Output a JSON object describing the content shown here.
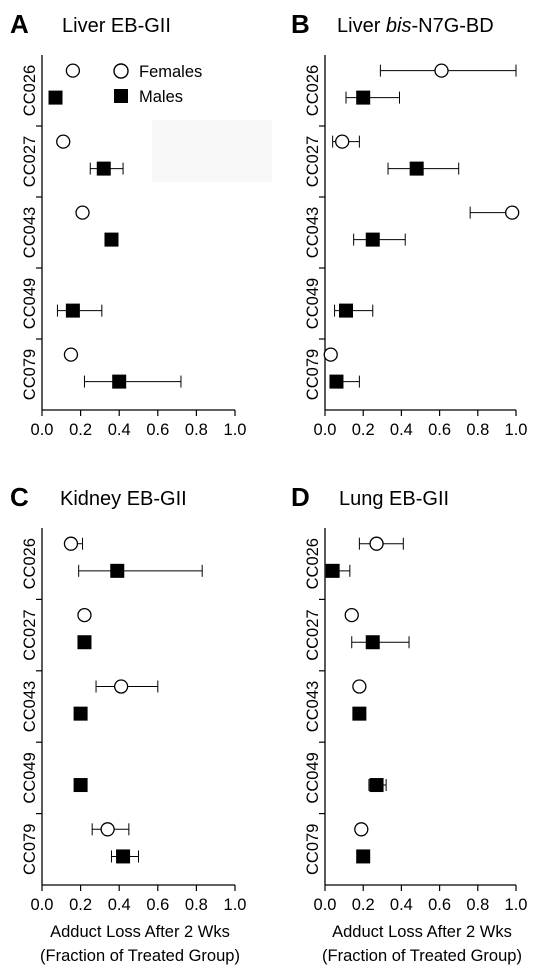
{
  "chart_data": [
    {
      "type": "scatter",
      "panel_label": "A",
      "title": "Liver EB-GII",
      "title_italic_part": "",
      "title_rest": "",
      "categories": [
        "CC026",
        "CC027",
        "CC043",
        "CC049",
        "CC079"
      ],
      "xlim": [
        0,
        1.0
      ],
      "xticks": [
        "0.0",
        "0.2",
        "0.4",
        "0.6",
        "0.8",
        "1.0"
      ],
      "xlabel_line1": "",
      "xlabel_line2": "",
      "show_legend": true,
      "series": [
        {
          "name": "Females",
          "marker": "open-circle",
          "values": [
            0.16,
            0.11,
            0.21,
            null,
            0.15
          ],
          "err_low": [
            null,
            null,
            null,
            null,
            null
          ],
          "err_high": [
            null,
            null,
            null,
            null,
            null
          ]
        },
        {
          "name": "Males",
          "marker": "filled-square",
          "values": [
            0.07,
            0.32,
            0.36,
            0.16,
            0.4
          ],
          "err_low": [
            null,
            0.25,
            null,
            0.08,
            0.22
          ],
          "err_high": [
            null,
            0.42,
            null,
            0.31,
            0.72
          ]
        }
      ]
    },
    {
      "type": "scatter",
      "panel_label": "B",
      "title": "",
      "title_prefix": "Liver ",
      "title_italic_part": "bis",
      "title_rest": "-N7G-BD",
      "categories": [
        "CC026",
        "CC027",
        "CC043",
        "CC049",
        "CC079"
      ],
      "xlim": [
        0,
        1.0
      ],
      "xticks": [
        "0.0",
        "0.2",
        "0.4",
        "0.6",
        "0.8",
        "1.0"
      ],
      "xlabel_line1": "",
      "xlabel_line2": "",
      "show_legend": false,
      "series": [
        {
          "name": "Females",
          "marker": "open-circle",
          "values": [
            0.61,
            0.09,
            0.98,
            null,
            0.03
          ],
          "err_low": [
            0.29,
            0.04,
            0.76,
            null,
            null
          ],
          "err_high": [
            1.0,
            0.18,
            1.0,
            null,
            null
          ]
        },
        {
          "name": "Males",
          "marker": "filled-square",
          "values": [
            0.2,
            0.48,
            0.25,
            0.11,
            0.06
          ],
          "err_low": [
            0.11,
            0.33,
            0.15,
            0.05,
            null
          ],
          "err_high": [
            0.39,
            0.7,
            0.42,
            0.25,
            0.18
          ]
        }
      ]
    },
    {
      "type": "scatter",
      "panel_label": "C",
      "title": "Kidney EB-GII",
      "title_italic_part": "",
      "title_rest": "",
      "categories": [
        "CC026",
        "CC027",
        "CC043",
        "CC049",
        "CC079"
      ],
      "xlim": [
        0,
        1.0
      ],
      "xticks": [
        "0.0",
        "0.2",
        "0.4",
        "0.6",
        "0.8",
        "1.0"
      ],
      "xlabel_line1": "Adduct Loss After 2 Wks",
      "xlabel_line2": "(Fraction of Treated Group)",
      "show_legend": false,
      "series": [
        {
          "name": "Females",
          "marker": "open-circle",
          "values": [
            0.15,
            0.22,
            0.41,
            null,
            0.34
          ],
          "err_low": [
            null,
            null,
            0.28,
            null,
            0.26
          ],
          "err_high": [
            0.21,
            null,
            0.6,
            null,
            0.45
          ]
        },
        {
          "name": "Males",
          "marker": "filled-square",
          "values": [
            0.39,
            0.22,
            0.2,
            0.2,
            0.42
          ],
          "err_low": [
            0.19,
            null,
            null,
            null,
            0.36
          ],
          "err_high": [
            0.83,
            null,
            null,
            null,
            0.5
          ]
        }
      ]
    },
    {
      "type": "scatter",
      "panel_label": "D",
      "title": "Lung EB-GII",
      "title_italic_part": "",
      "title_rest": "",
      "categories": [
        "CC026",
        "CC027",
        "CC043",
        "CC049",
        "CC079"
      ],
      "xlim": [
        0,
        1.0
      ],
      "xticks": [
        "0.0",
        "0.2",
        "0.4",
        "0.6",
        "0.8",
        "1.0"
      ],
      "xlabel_line1": "Adduct Loss After 2 Wks",
      "xlabel_line2": "(Fraction of Treated Group)",
      "show_legend": false,
      "series": [
        {
          "name": "Females",
          "marker": "open-circle",
          "values": [
            0.27,
            0.14,
            0.18,
            null,
            0.19
          ],
          "err_low": [
            0.18,
            null,
            null,
            null,
            null
          ],
          "err_high": [
            0.41,
            null,
            null,
            null,
            null
          ]
        },
        {
          "name": "Males",
          "marker": "filled-square",
          "values": [
            0.04,
            0.25,
            0.18,
            0.27,
            0.2
          ],
          "err_low": [
            null,
            0.14,
            null,
            0.23,
            null
          ],
          "err_high": [
            0.13,
            0.44,
            null,
            0.32,
            null
          ]
        }
      ]
    }
  ]
}
